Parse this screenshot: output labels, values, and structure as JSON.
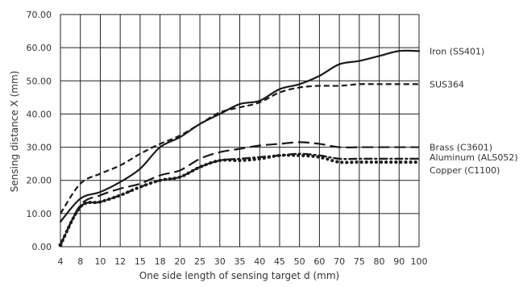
{
  "chart_data": {
    "type": "line",
    "xlabel": "One side length of sensing target d (mm)",
    "ylabel": "Sensing distance X (mm)",
    "x_ticks": [
      "4",
      "8",
      "10",
      "12",
      "15",
      "18",
      "20",
      "25",
      "30",
      "35",
      "40",
      "45",
      "50",
      "60",
      "70",
      "75",
      "80",
      "90",
      "100"
    ],
    "y_ticks": [
      "0.00",
      "10.00",
      "20.00",
      "30.00",
      "40.00",
      "50.00",
      "60.00",
      "70.00"
    ],
    "ylim": [
      0,
      70
    ],
    "grid": true,
    "series": [
      {
        "name": "Iron (SS401)",
        "style": "solid",
        "x": [
          "4",
          "8",
          "10",
          "12",
          "15",
          "18",
          "20",
          "25",
          "30",
          "35",
          "40",
          "45",
          "50",
          "60",
          "70",
          "75",
          "80",
          "90",
          "100"
        ],
        "values": [
          7.5,
          14.5,
          16.5,
          19.5,
          23.5,
          30.0,
          33.0,
          37.0,
          40.0,
          43.0,
          44.0,
          47.5,
          49.0,
          51.5,
          55.0,
          56.0,
          57.5,
          59.0,
          59.0
        ]
      },
      {
        "name": "SUS364",
        "style": "dashed-short",
        "x": [
          "4",
          "8",
          "10",
          "12",
          "15",
          "18",
          "20",
          "25",
          "30",
          "35",
          "40",
          "45",
          "50",
          "60",
          "70",
          "75",
          "80",
          "90",
          "100"
        ],
        "values": [
          10.0,
          19.0,
          22.0,
          24.5,
          28.0,
          31.0,
          33.5,
          37.0,
          40.5,
          42.0,
          43.5,
          46.5,
          48.0,
          48.5,
          48.5,
          49.0,
          49.0,
          49.0,
          49.0
        ]
      },
      {
        "name": "Brass (C3601)",
        "style": "dashed-long",
        "x": [
          "4",
          "8",
          "10",
          "12",
          "15",
          "18",
          "20",
          "25",
          "30",
          "35",
          "40",
          "45",
          "50",
          "60",
          "70",
          "75",
          "80",
          "90",
          "100"
        ],
        "values": [
          0.5,
          12.5,
          15.5,
          17.5,
          19.0,
          21.5,
          23.0,
          26.5,
          28.5,
          29.5,
          30.5,
          31.0,
          31.5,
          31.0,
          30.0,
          30.0,
          30.0,
          30.0,
          30.0
        ]
      },
      {
        "name": "Aluminum (ALS052)",
        "style": "dash-dot",
        "x": [
          "4",
          "8",
          "10",
          "12",
          "15",
          "18",
          "20",
          "25",
          "30",
          "35",
          "40",
          "45",
          "50",
          "60",
          "70",
          "75",
          "80",
          "90",
          "100"
        ],
        "values": [
          0.5,
          12.0,
          13.5,
          15.5,
          18.0,
          20.0,
          21.0,
          24.0,
          26.0,
          26.5,
          27.0,
          27.5,
          28.0,
          27.5,
          26.5,
          26.5,
          26.5,
          26.5,
          26.5
        ]
      },
      {
        "name": "Copper (C1100)",
        "style": "dotted",
        "x": [
          "4",
          "8",
          "10",
          "12",
          "15",
          "18",
          "20",
          "25",
          "30",
          "35",
          "40",
          "45",
          "50",
          "60",
          "70",
          "75",
          "80",
          "90",
          "100"
        ],
        "values": [
          0.5,
          12.0,
          13.5,
          15.5,
          18.0,
          20.0,
          21.0,
          24.0,
          26.0,
          26.0,
          26.5,
          27.5,
          27.5,
          27.0,
          25.5,
          25.5,
          25.5,
          25.5,
          25.5
        ]
      }
    ]
  }
}
